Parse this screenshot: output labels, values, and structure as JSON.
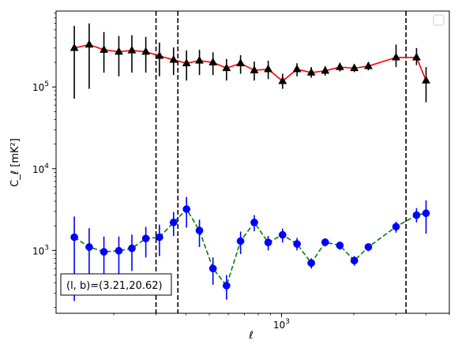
{
  "chart_data": {
    "type": "scatter",
    "title": "",
    "xlabel": "ℓ",
    "ylabel": "C_ℓ [mK²]",
    "x_scale": "log",
    "y_scale": "log",
    "xlim": [
      115,
      5000
    ],
    "ylim": [
      170,
      850000
    ],
    "grid": false,
    "legend": {
      "placement": "upper right",
      "entries": []
    },
    "x_ticks": [
      {
        "value": 1000,
        "base": "10",
        "exp": "3"
      }
    ],
    "y_ticks": [
      {
        "value": 1000,
        "base": "10",
        "exp": "3"
      },
      {
        "value": 10000,
        "base": "10",
        "exp": "4"
      },
      {
        "value": 100000,
        "base": "10",
        "exp": "5"
      }
    ],
    "annotation": "(l, b)=(3.21,20.62)",
    "vlines": [
      300,
      370,
      3300
    ],
    "series": [
      {
        "marker": "triangle",
        "color": "#000000",
        "line_color": "#ff0000",
        "line_style": "solid",
        "points": [
          {
            "x": 137,
            "y": 300000,
            "lo": 72000,
            "hi": 560000
          },
          {
            "x": 158,
            "y": 330000,
            "lo": 95000,
            "hi": 600000
          },
          {
            "x": 182,
            "y": 285000,
            "lo": 150000,
            "hi": 470000
          },
          {
            "x": 210,
            "y": 270000,
            "lo": 135000,
            "hi": 420000
          },
          {
            "x": 238,
            "y": 280000,
            "lo": 150000,
            "hi": 430000
          },
          {
            "x": 272,
            "y": 270000,
            "lo": 150000,
            "hi": 410000
          },
          {
            "x": 310,
            "y": 240000,
            "lo": 135000,
            "hi": 350000
          },
          {
            "x": 355,
            "y": 215000,
            "lo": 140000,
            "hi": 305000
          },
          {
            "x": 402,
            "y": 195000,
            "lo": 120000,
            "hi": 280000
          },
          {
            "x": 455,
            "y": 210000,
            "lo": 140000,
            "hi": 285000
          },
          {
            "x": 518,
            "y": 200000,
            "lo": 140000,
            "hi": 265000
          },
          {
            "x": 590,
            "y": 170000,
            "lo": 120000,
            "hi": 220000
          },
          {
            "x": 675,
            "y": 195000,
            "lo": 145000,
            "hi": 245000
          },
          {
            "x": 770,
            "y": 160000,
            "lo": 120000,
            "hi": 205000
          },
          {
            "x": 880,
            "y": 165000,
            "lo": 125000,
            "hi": 210000
          },
          {
            "x": 1010,
            "y": 118000,
            "lo": 95000,
            "hi": 145000
          },
          {
            "x": 1160,
            "y": 165000,
            "lo": 135000,
            "hi": 195000
          },
          {
            "x": 1330,
            "y": 150000,
            "lo": 130000,
            "hi": 175000
          },
          {
            "x": 1520,
            "y": 158000,
            "lo": 138000,
            "hi": 180000
          },
          {
            "x": 1750,
            "y": 175000,
            "lo": 155000,
            "hi": 198000
          },
          {
            "x": 2010,
            "y": 170000,
            "lo": 152000,
            "hi": 190000
          },
          {
            "x": 2300,
            "y": 180000,
            "lo": 160000,
            "hi": 200000
          },
          {
            "x": 3000,
            "y": 230000,
            "lo": 175000,
            "hi": 330000
          },
          {
            "x": 3650,
            "y": 230000,
            "lo": 185000,
            "hi": 300000
          },
          {
            "x": 4000,
            "y": 120000,
            "lo": 65000,
            "hi": 175000
          }
        ]
      },
      {
        "marker": "circle",
        "color": "#0000ff",
        "line_color": "#008000",
        "line_style": "dashed",
        "points": [
          {
            "x": 137,
            "y": 1450,
            "lo": 240,
            "hi": 2600
          },
          {
            "x": 158,
            "y": 1100,
            "lo": 340,
            "hi": 1870
          },
          {
            "x": 182,
            "y": 960,
            "lo": 420,
            "hi": 1480
          },
          {
            "x": 210,
            "y": 990,
            "lo": 490,
            "hi": 1480
          },
          {
            "x": 238,
            "y": 1060,
            "lo": 560,
            "hi": 1560
          },
          {
            "x": 272,
            "y": 1400,
            "lo": 820,
            "hi": 1940
          },
          {
            "x": 310,
            "y": 1450,
            "lo": 850,
            "hi": 2070
          },
          {
            "x": 355,
            "y": 2200,
            "lo": 1500,
            "hi": 2950
          },
          {
            "x": 402,
            "y": 3200,
            "lo": 1900,
            "hi": 4500
          },
          {
            "x": 455,
            "y": 1750,
            "lo": 1100,
            "hi": 2380
          },
          {
            "x": 518,
            "y": 600,
            "lo": 380,
            "hi": 820
          },
          {
            "x": 590,
            "y": 370,
            "lo": 250,
            "hi": 500
          },
          {
            "x": 675,
            "y": 1300,
            "lo": 900,
            "hi": 1700
          },
          {
            "x": 770,
            "y": 2200,
            "lo": 1720,
            "hi": 2700
          },
          {
            "x": 880,
            "y": 1250,
            "lo": 1000,
            "hi": 1500
          },
          {
            "x": 1010,
            "y": 1550,
            "lo": 1250,
            "hi": 1850
          },
          {
            "x": 1160,
            "y": 1200,
            "lo": 1000,
            "hi": 1420
          },
          {
            "x": 1330,
            "y": 700,
            "lo": 600,
            "hi": 800
          },
          {
            "x": 1520,
            "y": 1260,
            "lo": 1120,
            "hi": 1400
          },
          {
            "x": 1750,
            "y": 1150,
            "lo": 1020,
            "hi": 1280
          },
          {
            "x": 2010,
            "y": 750,
            "lo": 650,
            "hi": 850
          },
          {
            "x": 2300,
            "y": 1100,
            "lo": 980,
            "hi": 1220
          },
          {
            "x": 3000,
            "y": 1950,
            "lo": 1650,
            "hi": 2250
          },
          {
            "x": 3650,
            "y": 2700,
            "lo": 2200,
            "hi": 3300
          },
          {
            "x": 4000,
            "y": 2850,
            "lo": 1600,
            "hi": 4100
          }
        ]
      }
    ]
  }
}
